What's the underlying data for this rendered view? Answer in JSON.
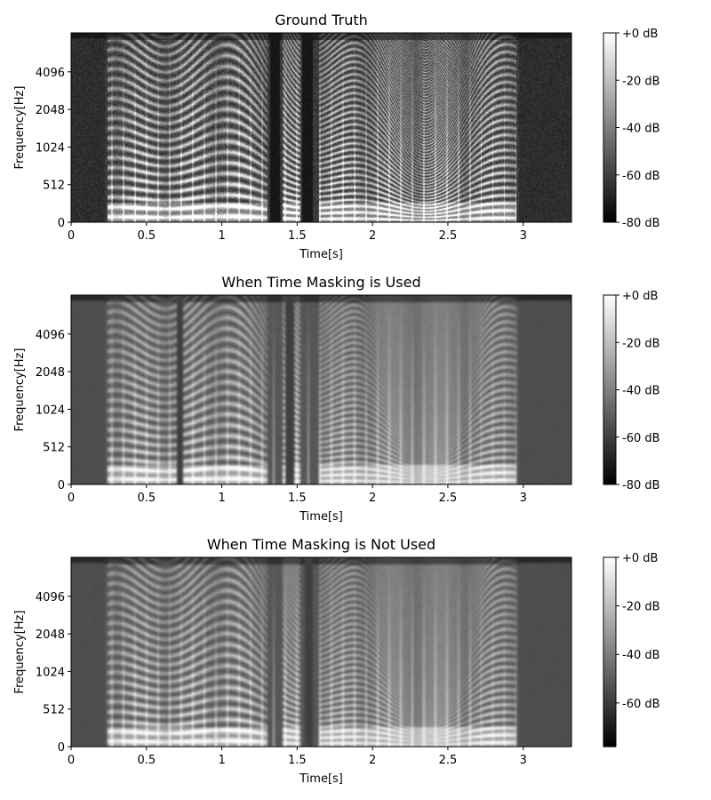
{
  "chart_data": [
    {
      "type": "heatmap",
      "title": "Ground Truth",
      "xlabel": "Time[s]",
      "ylabel": "Frequency[Hz]",
      "x_ticks": [
        "0",
        "0.5",
        "1",
        "1.5",
        "2",
        "2.5",
        "3"
      ],
      "y_ticks": [
        "0",
        "512",
        "1024",
        "2048",
        "4096"
      ],
      "xlim": [
        0,
        3.32
      ],
      "colorbar": {
        "ticks": [
          "+0 dB",
          "-20 dB",
          "-40 dB",
          "-60 dB",
          "-80 dB"
        ],
        "range": [
          -80,
          0
        ],
        "colormap": "gray"
      },
      "silence_gaps": [
        [
          1.32,
          1.38
        ],
        [
          1.53,
          1.6
        ]
      ],
      "spectral_character": "sharp harmonics, dark background"
    },
    {
      "type": "heatmap",
      "title": "When Time Masking is Used",
      "xlabel": "Time[s]",
      "ylabel": "Frequency[Hz]",
      "x_ticks": [
        "0",
        "0.5",
        "1",
        "1.5",
        "2",
        "2.5",
        "3"
      ],
      "y_ticks": [
        "0",
        "512",
        "1024",
        "2048",
        "4096"
      ],
      "xlim": [
        0,
        3.32
      ],
      "colorbar": {
        "ticks": [
          "+0 dB",
          "-20 dB",
          "-40 dB",
          "-60 dB",
          "-80 dB"
        ],
        "range": [
          -80,
          0
        ],
        "colormap": "gray"
      },
      "silence_gaps": [
        [
          0.7,
          0.74
        ],
        [
          1.42,
          1.48
        ]
      ],
      "spectral_character": "smoothed harmonics, raised noise floor"
    },
    {
      "type": "heatmap",
      "title": "When Time Masking is Not Used",
      "xlabel": "Time[s]",
      "ylabel": "Frequency[Hz]",
      "x_ticks": [
        "0",
        "0.5",
        "1",
        "1.5",
        "2",
        "2.5",
        "3"
      ],
      "y_ticks": [
        "0",
        "512",
        "1024",
        "2048",
        "4096"
      ],
      "xlim": [
        0,
        3.32
      ],
      "colorbar": {
        "ticks": [
          "+0 dB",
          "-20 dB",
          "-40 dB",
          "-60 dB"
        ],
        "range": [
          -78,
          0
        ],
        "colormap": "gray"
      },
      "silence_gaps": [
        [
          1.55,
          1.6
        ]
      ],
      "spectral_character": "smoothed harmonics, raised noise floor"
    }
  ]
}
